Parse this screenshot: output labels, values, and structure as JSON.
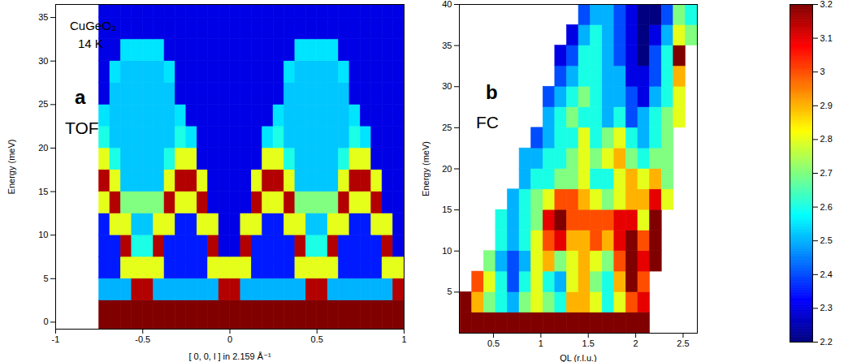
{
  "chart_data": [
    {
      "type": "heatmap",
      "annotations": [
        "CuGeO₃",
        "14 K",
        "a",
        "TOF"
      ],
      "x_label": "[ 0, 0, l ] in 2.159 Å⁻¹",
      "y_label": "Energy (meV)",
      "xlim": [
        -1,
        1
      ],
      "xticks": [
        -1,
        -0.5,
        0,
        0.5,
        1
      ],
      "ylim": [
        -0.8,
        36.5
      ],
      "yticks": [
        0,
        5,
        10,
        15,
        20,
        25,
        30,
        35
      ],
      "color": "jet",
      "zlim": [
        0,
        10
      ],
      "x_edges": [
        -0.75,
        -0.6875,
        -0.625,
        -0.5625,
        -0.5,
        -0.4375,
        -0.375,
        -0.3125,
        -0.25,
        -0.1875,
        -0.125,
        -0.0625,
        0,
        0.0625,
        0.125,
        0.1875,
        0.25,
        0.3125,
        0.375,
        0.4375,
        0.5,
        0.5625,
        0.625,
        0.6875,
        0.75,
        0.8125,
        0.875,
        0.9375,
        1
      ],
      "y_edges": [
        -0.8,
        2.5,
        5,
        7.5,
        10,
        12.5,
        15,
        17.5,
        20,
        22.5,
        25,
        27.5,
        30,
        32.5,
        35,
        36.5
      ],
      "cells": [
        [
          10,
          10,
          10,
          10,
          10,
          10,
          10,
          10,
          10,
          10,
          10,
          10,
          10,
          10,
          10,
          10,
          10,
          10,
          10,
          10,
          10,
          10,
          10,
          10,
          10,
          10,
          10,
          10
        ],
        [
          3,
          3,
          3,
          9.5,
          9.5,
          3,
          3,
          3,
          3,
          3,
          3,
          9.5,
          9.5,
          3,
          3,
          3,
          3,
          3,
          3,
          9.5,
          9.5,
          3,
          3,
          3,
          3,
          3,
          3,
          9.5
        ],
        [
          1.5,
          1.5,
          6,
          6,
          6,
          6,
          1.5,
          1.5,
          1.5,
          1.5,
          6,
          6,
          6,
          6,
          1.5,
          1.5,
          1.5,
          1.5,
          6,
          6,
          6,
          6,
          1.5,
          1.5,
          1.5,
          1.5,
          6,
          6
        ],
        [
          1.5,
          1.5,
          9.5,
          4,
          4,
          9.5,
          1.5,
          1.5,
          1.5,
          1.5,
          9.5,
          1,
          1,
          9.5,
          1.5,
          1.5,
          1.5,
          1.5,
          9.5,
          4,
          4,
          9.5,
          1.5,
          1.5,
          1.5,
          1.5,
          9.5,
          1
        ],
        [
          1.5,
          6,
          6,
          3.2,
          3.2,
          6,
          6,
          1.5,
          1.5,
          6,
          6,
          1,
          1,
          6,
          6,
          1.5,
          1.5,
          6,
          6,
          3.2,
          3.2,
          6,
          6,
          1.5,
          1.5,
          6,
          6,
          1
        ],
        [
          6,
          9.5,
          5,
          5,
          5,
          5,
          9.5,
          6,
          6,
          9.5,
          1,
          1,
          1,
          1,
          9.5,
          6,
          6,
          9.5,
          5,
          5,
          5,
          5,
          9.5,
          6,
          6,
          9.5,
          1,
          1
        ],
        [
          9.5,
          6,
          3.2,
          3.2,
          3.2,
          3.2,
          6,
          9.5,
          9.5,
          6,
          1,
          1,
          1,
          1,
          6,
          9.5,
          9.5,
          6,
          3.2,
          3.2,
          3.2,
          3.2,
          6,
          9.5,
          9.5,
          6,
          1,
          1
        ],
        [
          6,
          4,
          3.2,
          3.2,
          3.2,
          3.2,
          4,
          6,
          6,
          1,
          1,
          1,
          1,
          1,
          1,
          6,
          6,
          4,
          3.2,
          3.2,
          3.2,
          3.2,
          4,
          6,
          6,
          1,
          1,
          1
        ],
        [
          4,
          3.2,
          3.2,
          3.2,
          3.2,
          3.2,
          3.2,
          4,
          3.5,
          1,
          1,
          1,
          1,
          1,
          1,
          3.5,
          4,
          3.2,
          3.2,
          3.2,
          3.2,
          3.2,
          3.2,
          4,
          3.5,
          1,
          1,
          1
        ],
        [
          3.5,
          3.2,
          3.2,
          3.2,
          3.2,
          3.2,
          3.2,
          3.5,
          1,
          1,
          1,
          1,
          1,
          1,
          1,
          1,
          3.5,
          3.2,
          3.2,
          3.2,
          3.2,
          3.2,
          3.2,
          3.5,
          1,
          1,
          1,
          1
        ],
        [
          1,
          3.2,
          3.2,
          3.2,
          3.2,
          3.2,
          3.2,
          1,
          1,
          1,
          1,
          1,
          1,
          1,
          1,
          1,
          1,
          3.2,
          3.2,
          3.2,
          3.2,
          3.2,
          3.2,
          1,
          1,
          1,
          1,
          1
        ],
        [
          1,
          3.5,
          3.2,
          3.2,
          3.2,
          3.2,
          3.5,
          1,
          1,
          1,
          1,
          1,
          1,
          1,
          1,
          1,
          1,
          3.5,
          3.2,
          3.2,
          3.2,
          3.2,
          3.5,
          1,
          1,
          1,
          1,
          1
        ],
        [
          1,
          1,
          3.5,
          3.5,
          3.5,
          3.5,
          1,
          1,
          1,
          1,
          1,
          1,
          1,
          1,
          1,
          1,
          1,
          1,
          3.5,
          3.5,
          3.5,
          3.5,
          1,
          1,
          1,
          1,
          1,
          1
        ],
        [
          1,
          1,
          1,
          1,
          1,
          1,
          1,
          1,
          1,
          1,
          1,
          1,
          1,
          1,
          1,
          1,
          1,
          1,
          1,
          1,
          1,
          1,
          1,
          1,
          1,
          1,
          1,
          1
        ],
        [
          1,
          1,
          1,
          1,
          1,
          1,
          1,
          1,
          1,
          1,
          1,
          1,
          1,
          1,
          1,
          1,
          1,
          1,
          1,
          1,
          1,
          1,
          1,
          1,
          1,
          1,
          1,
          1
        ]
      ]
    },
    {
      "type": "heatmap",
      "annotations": [
        "b",
        "FC"
      ],
      "x_label": "QL (r.l.u.)",
      "y_label": "Energy (meV)",
      "xlim": [
        0.14,
        2.65
      ],
      "xticks": [
        0.5,
        1,
        1.5,
        2,
        2.5
      ],
      "ylim": [
        0,
        40
      ],
      "yticks": [
        5,
        10,
        15,
        20,
        25,
        30,
        35,
        40
      ],
      "color": "jet",
      "colorbar": {
        "range": [
          2.2,
          3.2
        ],
        "ticks": [
          2.2,
          2.3,
          2.4,
          2.5,
          2.6,
          2.7,
          2.8,
          2.9,
          3,
          3.1,
          3.2
        ]
      },
      "x_edges": [
        0.15,
        0.275,
        0.4,
        0.525,
        0.65,
        0.775,
        0.9,
        1.025,
        1.15,
        1.275,
        1.4,
        1.525,
        1.65,
        1.775,
        1.9,
        2.025,
        2.15,
        2.275,
        2.4,
        2.525,
        2.65
      ],
      "y_edges": [
        0,
        2.5,
        5,
        7.5,
        10,
        12.5,
        15,
        17.5,
        20,
        22.5,
        25,
        27.5,
        30,
        32.5,
        35,
        37.5,
        40
      ],
      "cells": [
        [
          3.2,
          3.2,
          3.2,
          3.2,
          3.2,
          3.2,
          3.2,
          3.2,
          3.2,
          3.2,
          3.2,
          3.2,
          3.2,
          3.2,
          3.2,
          3.2,
          null,
          null,
          null,
          null
        ],
        [
          3.2,
          2.9,
          2.7,
          2.6,
          2.5,
          2.7,
          2.8,
          2.7,
          2.6,
          2.9,
          2.9,
          2.8,
          2.6,
          2.8,
          3,
          3.1,
          null,
          null,
          null,
          null
        ],
        [
          null,
          3,
          2.8,
          2.6,
          2.4,
          2.6,
          2.8,
          2.6,
          2.5,
          2.8,
          2.9,
          2.7,
          2.6,
          2.9,
          3.2,
          3,
          null,
          null,
          null,
          null
        ],
        [
          null,
          null,
          2.7,
          2.5,
          2.4,
          2.5,
          2.8,
          2.9,
          2.7,
          2.8,
          2.9,
          2.8,
          2.7,
          3,
          3.2,
          3.1,
          3.2,
          null,
          null,
          null
        ],
        [
          null,
          null,
          null,
          2.6,
          2.5,
          2.6,
          2.8,
          3,
          3.1,
          2.9,
          2.9,
          3,
          2.9,
          3.1,
          3.2,
          3,
          3.2,
          null,
          null,
          null
        ],
        [
          null,
          null,
          null,
          2.6,
          2.5,
          2.6,
          2.7,
          3.1,
          3.2,
          3,
          3,
          3,
          3,
          3.1,
          3.1,
          2.8,
          3.2,
          null,
          null,
          null
        ],
        [
          null,
          null,
          null,
          null,
          2.5,
          2.6,
          2.7,
          2.8,
          3,
          3,
          2.9,
          2.8,
          2.7,
          2.8,
          2.9,
          2.9,
          3.1,
          2.8,
          null,
          null
        ],
        [
          null,
          null,
          null,
          null,
          null,
          2.5,
          2.6,
          2.6,
          2.7,
          2.7,
          2.8,
          2.6,
          2.6,
          2.8,
          2.9,
          2.8,
          2.9,
          2.7,
          null,
          null
        ],
        [
          null,
          null,
          null,
          null,
          null,
          2.5,
          2.5,
          2.6,
          2.6,
          2.7,
          2.8,
          2.7,
          2.8,
          2.9,
          2.7,
          2.6,
          2.7,
          2.7,
          null,
          null
        ],
        [
          null,
          null,
          null,
          null,
          null,
          null,
          2.4,
          2.5,
          2.6,
          2.6,
          2.8,
          2.6,
          2.7,
          2.8,
          2.6,
          2.5,
          2.6,
          2.7,
          null,
          null
        ],
        [
          null,
          null,
          null,
          null,
          null,
          null,
          null,
          2.5,
          2.6,
          2.7,
          2.6,
          2.6,
          2.5,
          2.6,
          2.4,
          2.5,
          2.6,
          2.7,
          2.8,
          null
        ],
        [
          null,
          null,
          null,
          null,
          null,
          null,
          null,
          2.4,
          2.5,
          2.6,
          2.7,
          2.6,
          2.5,
          2.5,
          2.4,
          2.3,
          2.5,
          2.6,
          2.8,
          null
        ],
        [
          null,
          null,
          null,
          null,
          null,
          null,
          null,
          null,
          2.4,
          2.5,
          2.6,
          2.6,
          2.5,
          2.5,
          2.3,
          2.3,
          2.4,
          2.6,
          2.9,
          null
        ],
        [
          null,
          null,
          null,
          null,
          null,
          null,
          null,
          null,
          2.3,
          2.4,
          2.6,
          2.6,
          2.5,
          2.4,
          2.3,
          2.2,
          2.4,
          2.6,
          3.2,
          null
        ],
        [
          null,
          null,
          null,
          null,
          null,
          null,
          null,
          null,
          null,
          2.3,
          2.5,
          2.6,
          2.5,
          2.4,
          2.3,
          2.2,
          2.3,
          2.5,
          2.8,
          2.7
        ],
        [
          null,
          null,
          null,
          null,
          null,
          null,
          null,
          null,
          null,
          null,
          2.4,
          2.5,
          2.5,
          2.4,
          2.3,
          2.2,
          2.2,
          2.4,
          2.7,
          2.6
        ]
      ]
    }
  ]
}
